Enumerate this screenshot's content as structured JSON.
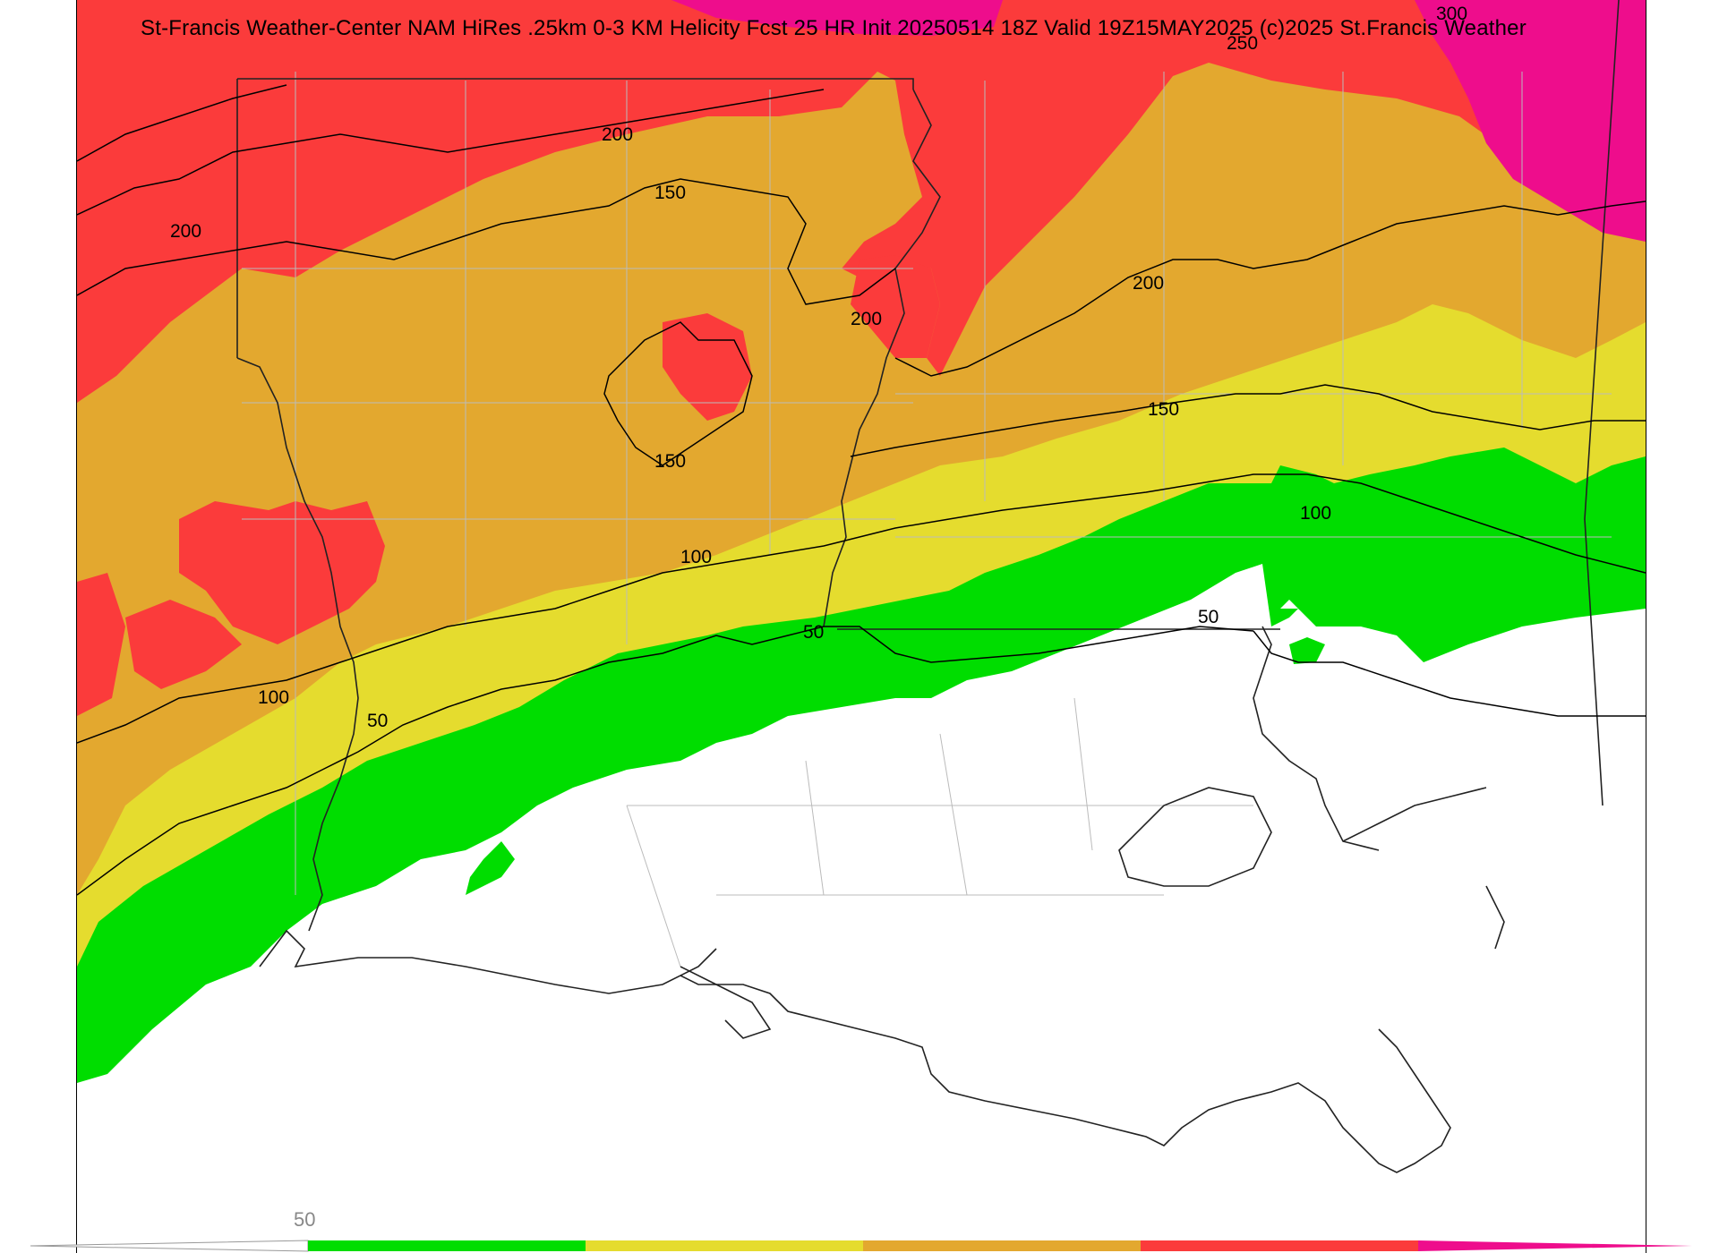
{
  "title": "St-Francis Weather-Center NAM HiRes .25km 0-3 KM Helicity Fcst 25 HR Init 2025051​4 18Z  Valid 19Z15MAY2025    (c)2025 St.Francis Weather",
  "legend": {
    "visible_tick_label": "50",
    "bins": [
      {
        "range": "<50",
        "color": "#ffffff"
      },
      {
        "range": "50-100",
        "color": "#00dd00"
      },
      {
        "range": "100-150",
        "color": "#e5dc2e"
      },
      {
        "range": "150-200",
        "color": "#e3a82f"
      },
      {
        "range": "200-250",
        "color": "#fb3b3b"
      },
      {
        "range": ">250",
        "color": "#ee0d8c"
      }
    ]
  },
  "contour_labels": [
    "200",
    "200",
    "150",
    "200",
    "200",
    "150",
    "150",
    "100",
    "100",
    "50",
    "50",
    "50",
    "100",
    "250",
    "300"
  ],
  "colors": {
    "white": "#ffffff",
    "green": "#00dd00",
    "yellow": "#e5dc2e",
    "orange": "#e3a82f",
    "red": "#fb3b3b",
    "magenta": "#ee0d8c",
    "border": "#222222"
  }
}
